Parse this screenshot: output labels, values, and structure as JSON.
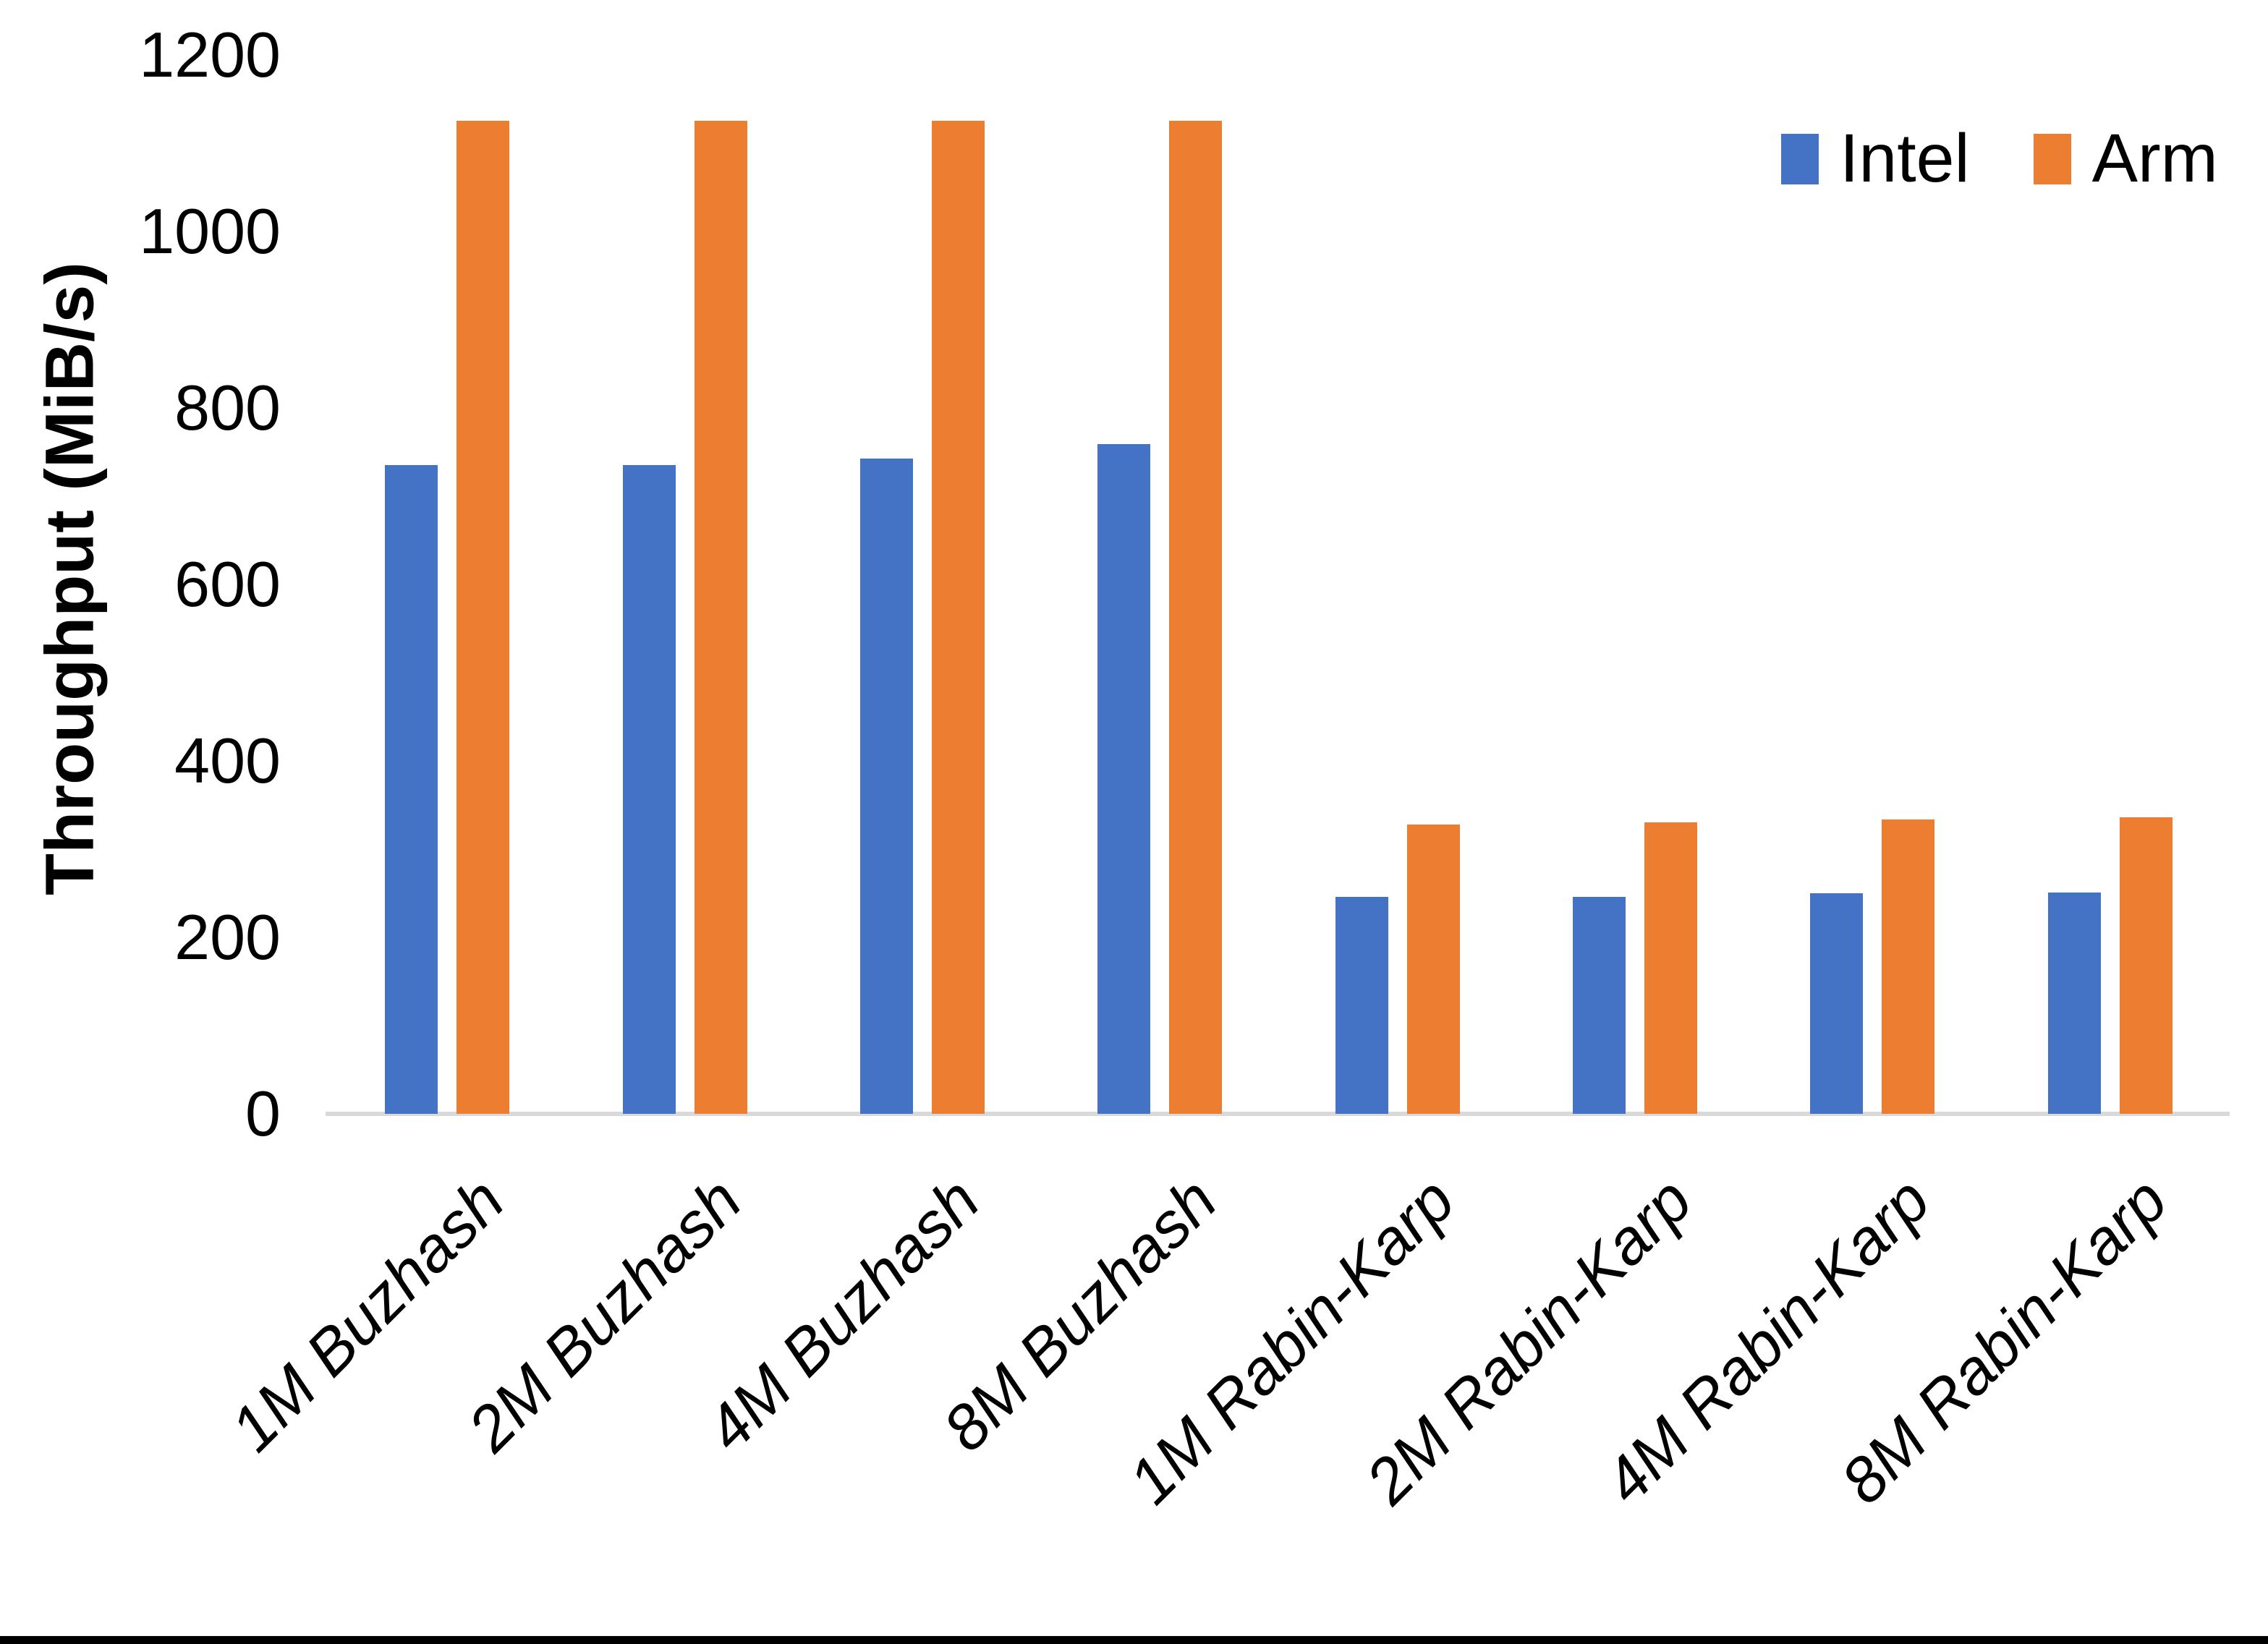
{
  "colors": {
    "intel": "#4472C4",
    "arm": "#ED7D31",
    "axis_line": "#D9D9D9",
    "text": "#000000",
    "background": "#FFFFFF",
    "bottom_border": "#000000"
  },
  "legend": {
    "items": [
      {
        "label": "Intel",
        "color": "#4472C4"
      },
      {
        "label": "Arm",
        "color": "#ED7D31"
      }
    ],
    "position": "top-right"
  },
  "chart_data": {
    "type": "bar",
    "title": "",
    "categories": [
      "1M Buzhash",
      "2M Buzhash",
      "4M Buzhash",
      "8M Buzhash",
      "1M Rabin-Karp",
      "2M Rabin-Karp",
      "4M Rabin-Karp",
      "8M Rabin-Karp"
    ],
    "series": [
      {
        "name": "Intel",
        "color": "#4472C4",
        "values": [
          735,
          735,
          743,
          759,
          246,
          246,
          250,
          251
        ]
      },
      {
        "name": "Arm",
        "color": "#ED7D31",
        "values": [
          1125,
          1125,
          1125,
          1125,
          328,
          330,
          334,
          336
        ]
      }
    ],
    "xlabel": "",
    "ylabel": "Throughput (MiB/s)",
    "ylim": [
      0,
      1200
    ],
    "ytick_values": [
      0,
      200,
      400,
      600,
      800,
      1000,
      1200
    ],
    "ytick_labels": [
      "0",
      "200",
      "400",
      "600",
      "800",
      "1000",
      "1200"
    ],
    "grid": false,
    "legend_position": "top-right"
  }
}
